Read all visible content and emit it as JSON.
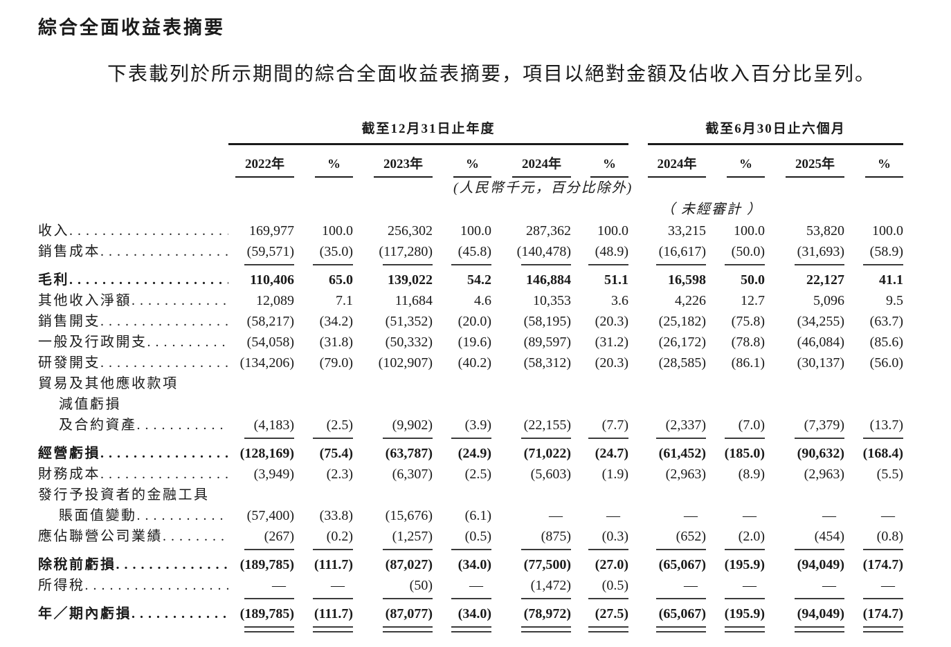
{
  "page": {
    "title": "綜合全面收益表摘要",
    "intro": "下表載列於所示期間的綜合全面收益表摘要，項目以絕對金額及佔收入百分比呈列。"
  },
  "colors": {
    "text": "#1a1a1a",
    "rule": "#3a3a3a",
    "background": "#ffffff"
  },
  "table": {
    "group_headers": [
      {
        "label": "截至12月31日止年度",
        "span": 6
      },
      {
        "label": "截至6月30日止六個月",
        "span": 4
      }
    ],
    "column_headers": [
      "2022年",
      "%",
      "2023年",
      "%",
      "2024年",
      "%",
      "2024年",
      "%",
      "2025年",
      "%"
    ],
    "unit_note": "(人民幣千元，百分比除外)",
    "unaudited_note": "（ 未經審計 ）",
    "rows": [
      {
        "label_lines": [
          "收入"
        ],
        "bold": false,
        "rule_after": null,
        "values": [
          "169,977",
          "100.0",
          "256,302",
          "100.0",
          "287,362",
          "100.0",
          "33,215",
          "100.0",
          "53,820",
          "100.0"
        ]
      },
      {
        "label_lines": [
          "銷售成本"
        ],
        "bold": false,
        "rule_after": "single",
        "values": [
          "(59,571)",
          "(35.0)",
          "(117,280)",
          "(45.8)",
          "(140,478)",
          "(48.9)",
          "(16,617)",
          "(50.0)",
          "(31,693)",
          "(58.9)"
        ]
      },
      {
        "label_lines": [
          "毛利"
        ],
        "bold": true,
        "rule_after": null,
        "values": [
          "110,406",
          "65.0",
          "139,022",
          "54.2",
          "146,884",
          "51.1",
          "16,598",
          "50.0",
          "22,127",
          "41.1"
        ]
      },
      {
        "label_lines": [
          "其他收入淨額"
        ],
        "bold": false,
        "rule_after": null,
        "values": [
          "12,089",
          "7.1",
          "11,684",
          "4.6",
          "10,353",
          "3.6",
          "4,226",
          "12.7",
          "5,096",
          "9.5"
        ]
      },
      {
        "label_lines": [
          "銷售開支"
        ],
        "bold": false,
        "rule_after": null,
        "values": [
          "(58,217)",
          "(34.2)",
          "(51,352)",
          "(20.0)",
          "(58,195)",
          "(20.3)",
          "(25,182)",
          "(75.8)",
          "(34,255)",
          "(63.7)"
        ]
      },
      {
        "label_lines": [
          "一般及行政開支"
        ],
        "bold": false,
        "rule_after": null,
        "values": [
          "(54,058)",
          "(31.8)",
          "(50,332)",
          "(19.6)",
          "(89,597)",
          "(31.2)",
          "(26,172)",
          "(78.8)",
          "(46,084)",
          "(85.6)"
        ]
      },
      {
        "label_lines": [
          "研發開支"
        ],
        "bold": false,
        "rule_after": null,
        "values": [
          "(134,206)",
          "(79.0)",
          "(102,907)",
          "(40.2)",
          "(58,312)",
          "(20.3)",
          "(28,585)",
          "(86.1)",
          "(30,137)",
          "(56.0)"
        ]
      },
      {
        "label_lines": [
          "貿易及其他應收款項",
          "減值虧損",
          "及合約資產"
        ],
        "bold": false,
        "rule_after": "single",
        "values": [
          "(4,183)",
          "(2.5)",
          "(9,902)",
          "(3.9)",
          "(22,155)",
          "(7.7)",
          "(2,337)",
          "(7.0)",
          "(7,379)",
          "(13.7)"
        ]
      },
      {
        "label_lines": [
          "經營虧損"
        ],
        "bold": true,
        "rule_after": null,
        "values": [
          "(128,169)",
          "(75.4)",
          "(63,787)",
          "(24.9)",
          "(71,022)",
          "(24.7)",
          "(61,452)",
          "(185.0)",
          "(90,632)",
          "(168.4)"
        ]
      },
      {
        "label_lines": [
          "財務成本"
        ],
        "bold": false,
        "rule_after": null,
        "values": [
          "(3,949)",
          "(2.3)",
          "(6,307)",
          "(2.5)",
          "(5,603)",
          "(1.9)",
          "(2,963)",
          "(8.9)",
          "(2,963)",
          "(5.5)"
        ]
      },
      {
        "label_lines": [
          "發行予投資者的金融工具",
          "賬面值變動"
        ],
        "bold": false,
        "rule_after": null,
        "values": [
          "(57,400)",
          "(33.8)",
          "(15,676)",
          "(6.1)",
          "—",
          "—",
          "—",
          "—",
          "—",
          "—"
        ]
      },
      {
        "label_lines": [
          "應佔聯營公司業績"
        ],
        "bold": false,
        "rule_after": "single",
        "values": [
          "(267)",
          "(0.2)",
          "(1,257)",
          "(0.5)",
          "(875)",
          "(0.3)",
          "(652)",
          "(2.0)",
          "(454)",
          "(0.8)"
        ]
      },
      {
        "label_lines": [
          "除稅前虧損"
        ],
        "bold": true,
        "rule_after": null,
        "values": [
          "(189,785)",
          "(111.7)",
          "(87,027)",
          "(34.0)",
          "(77,500)",
          "(27.0)",
          "(65,067)",
          "(195.9)",
          "(94,049)",
          "(174.7)"
        ]
      },
      {
        "label_lines": [
          "所得稅"
        ],
        "bold": false,
        "rule_after": "single",
        "values": [
          "—",
          "—",
          "(50)",
          "—",
          "(1,472)",
          "(0.5)",
          "—",
          "—",
          "—",
          "—"
        ]
      },
      {
        "label_lines": [
          "年／期內虧損"
        ],
        "bold": true,
        "rule_after": "double",
        "values": [
          "(189,785)",
          "(111.7)",
          "(87,077)",
          "(34.0)",
          "(78,972)",
          "(27.5)",
          "(65,067)",
          "(195.9)",
          "(94,049)",
          "(174.7)"
        ]
      }
    ]
  }
}
